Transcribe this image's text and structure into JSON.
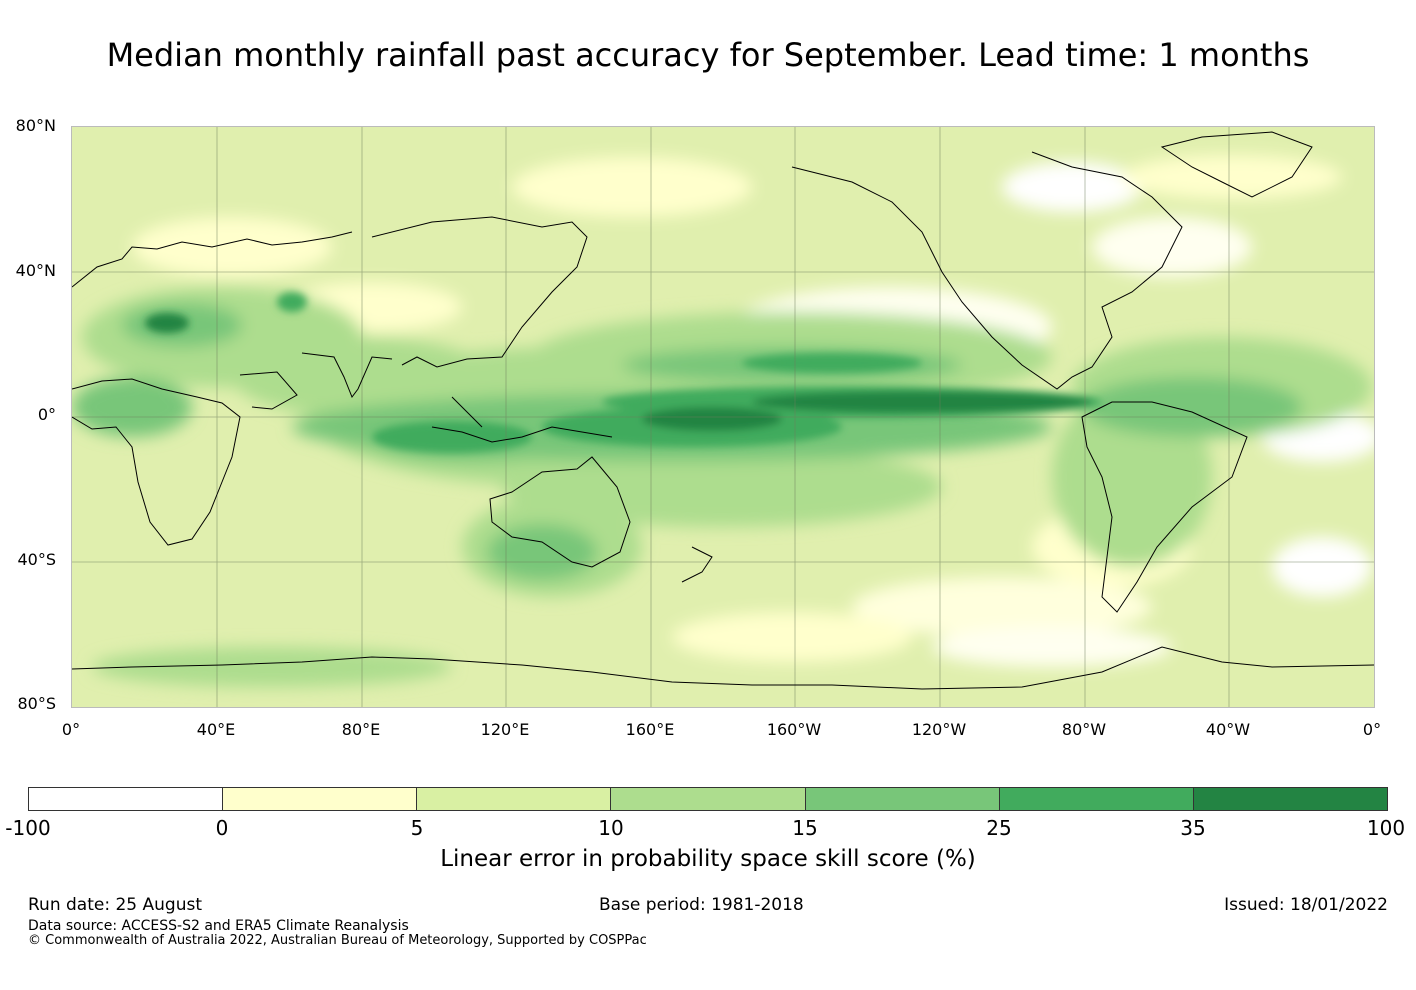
{
  "title": "Median monthly rainfall past accuracy for September. Lead time: 1 months",
  "map": {
    "lat_labels": [
      "80°N",
      "40°N",
      "0°",
      "40°S",
      "80°S"
    ],
    "lon_labels": [
      "0°",
      "40°E",
      "80°E",
      "120°E",
      "160°E",
      "160°W",
      "120°W",
      "80°W",
      "40°W",
      "0°"
    ]
  },
  "colorbar": {
    "label": "Linear error in probability space skill score (%)",
    "ticks": [
      "-100",
      "0",
      "5",
      "10",
      "15",
      "25",
      "35",
      "100"
    ],
    "colors": [
      "#ffffff",
      "#ffffcc",
      "#d9f0a3",
      "#addd8e",
      "#78c679",
      "#41ab5d",
      "#238443"
    ]
  },
  "footer": {
    "run_date": "Run date: 25 August",
    "base_period": "Base period: 1981-2018",
    "issued": "Issued: 18/01/2022",
    "data_source": "Data source: ACCESS-S2 and ERA5 Climate Reanalysis",
    "copyright": "© Commonwealth of Australia 2022, Australian Bureau of Meteorology, Supported by COSPPac"
  }
}
